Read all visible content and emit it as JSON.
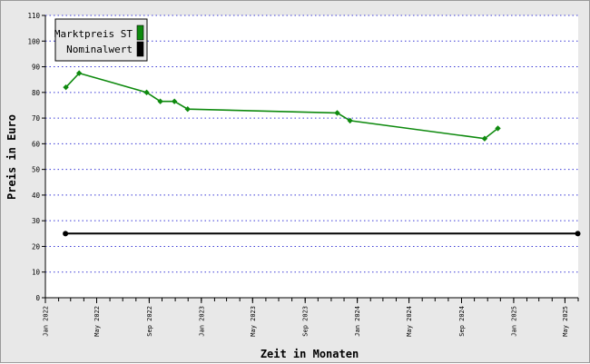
{
  "chart_data": {
    "type": "line",
    "title": "",
    "xlabel": "Zeit in Monaten",
    "ylabel": "Preis in Euro",
    "ylim": [
      0,
      110
    ],
    "y_ticks": [
      0,
      10,
      20,
      30,
      40,
      50,
      60,
      70,
      80,
      90,
      100,
      110
    ],
    "x_range": [
      "2022-01-01",
      "2025-06-01"
    ],
    "x_ticks": [
      {
        "date": "2022-01-01",
        "label": "Jan 2022"
      },
      {
        "date": "2022-05-01",
        "label": "May 2022"
      },
      {
        "date": "2022-09-01",
        "label": "Sep 2022"
      },
      {
        "date": "2023-01-01",
        "label": "Jan 2023"
      },
      {
        "date": "2023-05-01",
        "label": "May 2023"
      },
      {
        "date": "2023-09-01",
        "label": "Sep 2023"
      },
      {
        "date": "2024-01-01",
        "label": "Jan 2024"
      },
      {
        "date": "2024-05-01",
        "label": "May 2024"
      },
      {
        "date": "2024-09-01",
        "label": "Sep 2024"
      },
      {
        "date": "2025-01-01",
        "label": "Jan 2025"
      },
      {
        "date": "2025-05-01",
        "label": "May 2025"
      }
    ],
    "grid": true,
    "legend_position": "top-left",
    "series": [
      {
        "name": "Marktpreis ST",
        "color": "#0e8a0e",
        "points": [
          {
            "x": "2022-02-18",
            "y": 82.0
          },
          {
            "x": "2022-03-21",
            "y": 87.5
          },
          {
            "x": "2022-08-26",
            "y": 80.0
          },
          {
            "x": "2022-09-27",
            "y": 76.5
          },
          {
            "x": "2022-10-30",
            "y": 76.5
          },
          {
            "x": "2022-11-30",
            "y": 73.5
          },
          {
            "x": "2023-11-15",
            "y": 72.0
          },
          {
            "x": "2023-12-15",
            "y": 69.0
          },
          {
            "x": "2024-10-25",
            "y": 62.0
          },
          {
            "x": "2024-11-25",
            "y": 66.0
          }
        ]
      },
      {
        "name": "Nominalwert",
        "color": "#000000",
        "points": [
          {
            "x": "2022-02-17",
            "y": 25.0
          },
          {
            "x": "2025-05-31",
            "y": 25.0
          }
        ]
      }
    ]
  }
}
